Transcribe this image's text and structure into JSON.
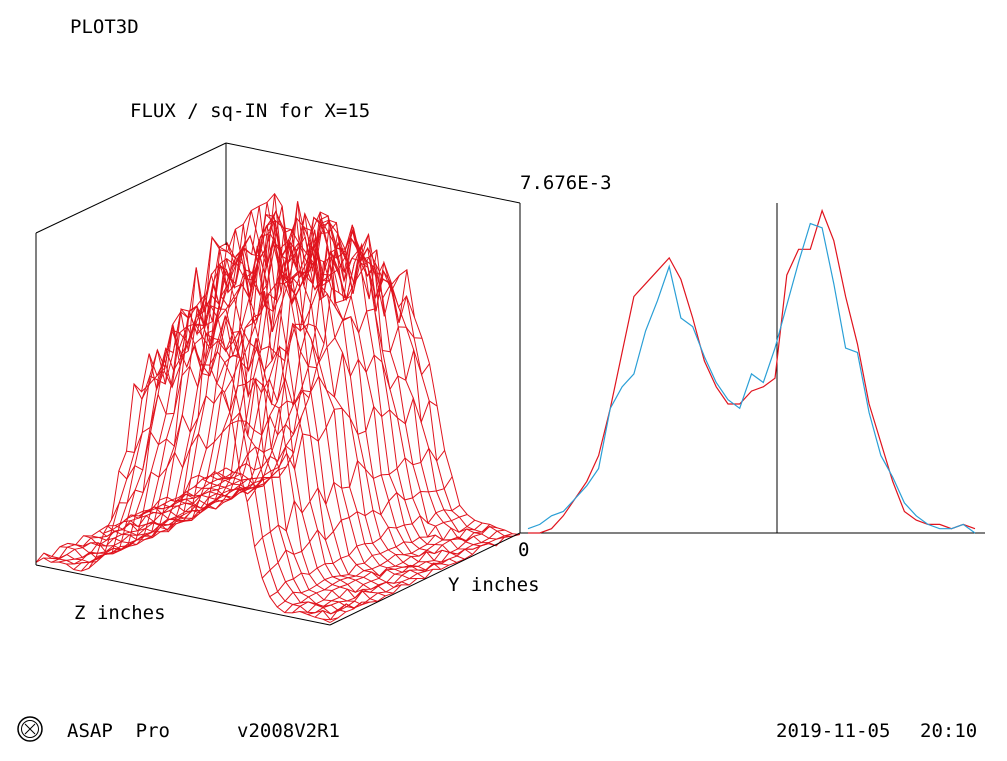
{
  "app": {
    "title": "PLOT3D"
  },
  "footer": {
    "product": "ASAP  Pro",
    "version": "v2008V2R1",
    "date": "2019-11-05",
    "time": "20:10",
    "logo_icon": "breault-logo-icon"
  },
  "colors": {
    "surface": "#e0141e",
    "profile_red": "#e0141e",
    "profile_blue": "#2a9fd6",
    "axes": "#000000"
  },
  "chart_data": [
    {
      "type": "surface3d",
      "title": "FLUX / sq-IN for X=15",
      "xlabel": "Y inches",
      "ylabel": "Z inches",
      "zmax_label": "7.676E-3",
      "zmin_label": "0",
      "zlim": [
        0,
        0.007676
      ],
      "grid_rows": 25,
      "grid_cols": 40,
      "description_shape": "single broad peak, plateau near center, near-zero at edges"
    },
    {
      "type": "line",
      "ylim": [
        0,
        0.007676
      ],
      "x": [
        0,
        1,
        2,
        3,
        4,
        5,
        6,
        7,
        8,
        9,
        10,
        11,
        12,
        13,
        14,
        15,
        16,
        17,
        18,
        19,
        20,
        21,
        22,
        23,
        24,
        25,
        26,
        27,
        28,
        29,
        30,
        31,
        32,
        33,
        34,
        35,
        36,
        37,
        38
      ],
      "series": [
        {
          "color": "#e0141e",
          "values": [
            0.0,
            0.0,
            0.0001,
            0.0004,
            0.0008,
            0.0012,
            0.0018,
            0.0029,
            0.0042,
            0.0055,
            0.0058,
            0.0061,
            0.0064,
            0.0059,
            0.005,
            0.004,
            0.0034,
            0.003,
            0.003,
            0.0033,
            0.0034,
            0.0036,
            0.006,
            0.0066,
            0.0066,
            0.0075,
            0.0068,
            0.0055,
            0.0044,
            0.003,
            0.0021,
            0.0012,
            0.0005,
            0.0003,
            0.0002,
            0.0002,
            0.0001,
            0.0002,
            0.0001
          ]
        },
        {
          "color": "#2a9fd6",
          "values": [
            0.0001,
            0.0002,
            0.0004,
            0.0005,
            0.0008,
            0.0011,
            0.0015,
            0.0029,
            0.0034,
            0.0037,
            0.0047,
            0.0054,
            0.0062,
            0.005,
            0.0048,
            0.0041,
            0.0035,
            0.0031,
            0.0029,
            0.0037,
            0.0035,
            0.0043,
            0.0053,
            0.0063,
            0.0072,
            0.0071,
            0.0058,
            0.0043,
            0.0042,
            0.0028,
            0.0018,
            0.0013,
            0.0007,
            0.0004,
            0.0002,
            0.0001,
            0.0001,
            0.0002,
            0.0
          ]
        }
      ]
    }
  ]
}
